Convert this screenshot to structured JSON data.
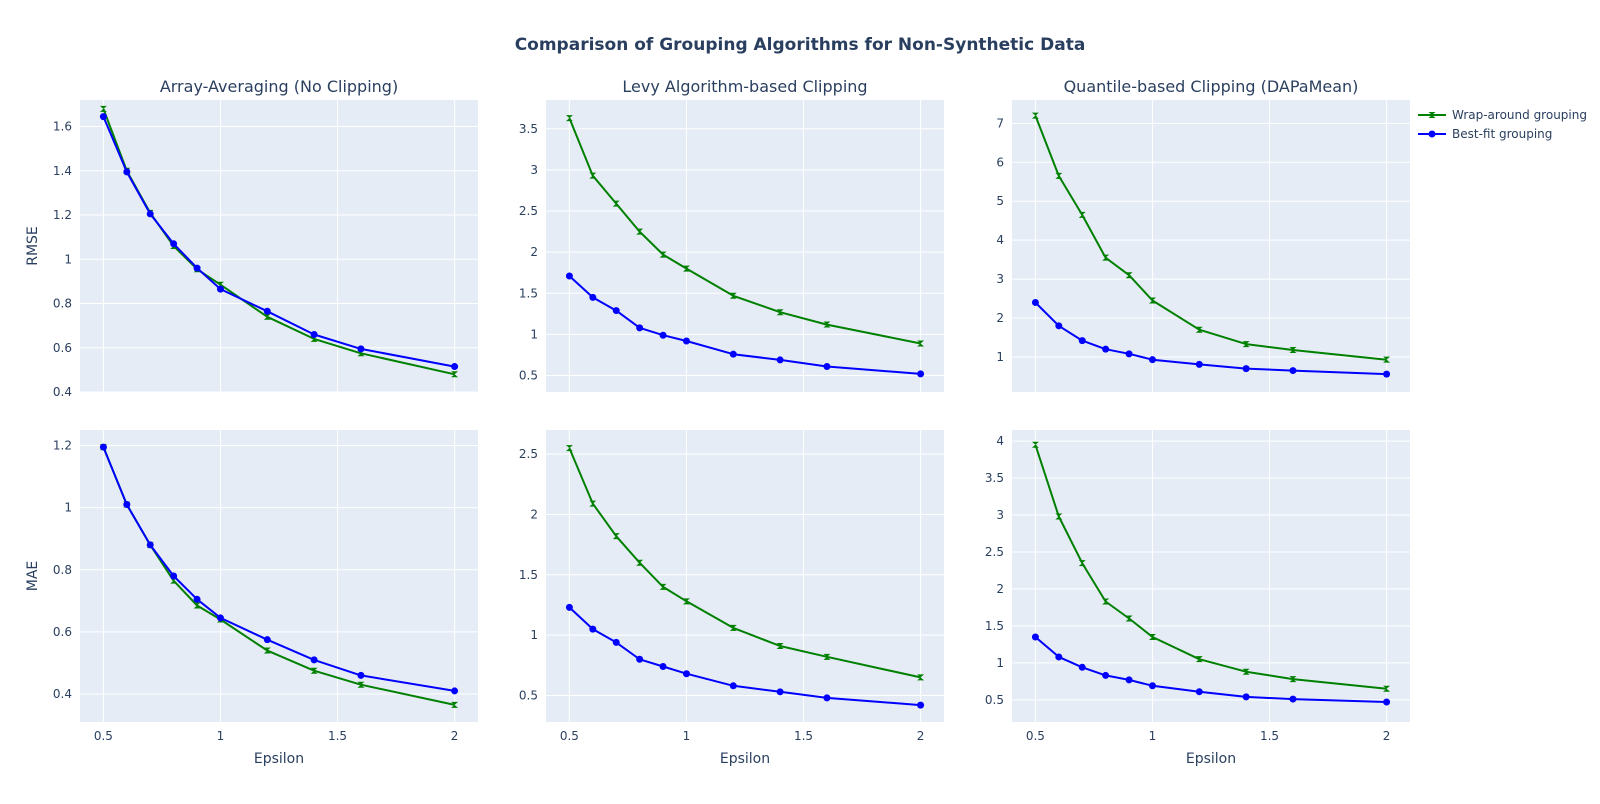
{
  "chart_data": {
    "type": "line",
    "title": "Comparison of Grouping Algorithms for Non-Synthetic Data",
    "x": [
      0.5,
      0.6,
      0.7,
      0.8,
      0.9,
      1.0,
      1.2,
      1.4,
      1.6,
      2.0
    ],
    "xlabel": "Epsilon",
    "xlim": [
      0.4,
      2.1
    ],
    "xticks": [
      0.5,
      1,
      1.5,
      2
    ],
    "xtick_labels": [
      "0.5",
      "1",
      "1.5",
      "2"
    ],
    "grid": true,
    "legend": "top-right",
    "legend_entries": [
      {
        "name": "Wrap-around grouping",
        "color": "#008000",
        "marker": "bowtie"
      },
      {
        "name": "Best-fit grouping",
        "color": "#0000ff",
        "marker": "circle"
      }
    ],
    "row_labels": [
      "RMSE",
      "MAE"
    ],
    "column_titles": [
      "Array-Averaging (No Clipping)",
      "Levy Algorithm-based Clipping",
      "Quantile-based Clipping (DAPaMean)"
    ],
    "subplots": [
      {
        "title": "Array-Averaging (No Clipping)",
        "ylabel": "RMSE",
        "ylim": [
          0.4,
          1.72
        ],
        "yticks": [
          0.4,
          0.6,
          0.8,
          1,
          1.2,
          1.4,
          1.6
        ],
        "ytick_labels": [
          "0.4",
          "0.6",
          "0.8",
          "1",
          "1.2",
          "1.4",
          "1.6"
        ],
        "series": [
          {
            "name": "Wrap-around grouping",
            "values": [
              1.68,
              1.4,
              1.21,
              1.06,
              0.955,
              0.885,
              0.74,
              0.64,
              0.575,
              0.48
            ]
          },
          {
            "name": "Best-fit grouping",
            "values": [
              1.645,
              1.395,
              1.205,
              1.07,
              0.96,
              0.865,
              0.765,
              0.66,
              0.595,
              0.515
            ]
          }
        ]
      },
      {
        "title": "Levy Algorithm-based Clipping",
        "ylabel": "",
        "ylim": [
          0.3,
          3.85
        ],
        "yticks": [
          0.5,
          1,
          1.5,
          2,
          2.5,
          3,
          3.5
        ],
        "ytick_labels": [
          "0.5",
          "1",
          "1.5",
          "2",
          "2.5",
          "3",
          "3.5"
        ],
        "series": [
          {
            "name": "Wrap-around grouping",
            "values": [
              3.63,
              2.93,
              2.59,
              2.25,
              1.97,
              1.8,
              1.47,
              1.27,
              1.12,
              0.89
            ]
          },
          {
            "name": "Best-fit grouping",
            "values": [
              1.71,
              1.45,
              1.29,
              1.08,
              0.99,
              0.92,
              0.76,
              0.69,
              0.61,
              0.52
            ]
          }
        ]
      },
      {
        "title": "Quantile-based Clipping (DAPaMean)",
        "ylabel": "",
        "ylim": [
          0.1,
          7.6
        ],
        "yticks": [
          1,
          2,
          3,
          4,
          5,
          6,
          7
        ],
        "ytick_labels": [
          "1",
          "2",
          "3",
          "4",
          "5",
          "6",
          "7"
        ],
        "series": [
          {
            "name": "Wrap-around grouping",
            "values": [
              7.2,
              5.65,
              4.65,
              3.55,
              3.1,
              2.45,
              1.7,
              1.33,
              1.18,
              0.93
            ]
          },
          {
            "name": "Best-fit grouping",
            "values": [
              2.4,
              1.8,
              1.42,
              1.2,
              1.08,
              0.93,
              0.81,
              0.7,
              0.65,
              0.56
            ]
          }
        ]
      },
      {
        "title": "",
        "ylabel": "MAE",
        "ylim": [
          0.31,
          1.25
        ],
        "yticks": [
          0.4,
          0.6,
          0.8,
          1,
          1.2
        ],
        "ytick_labels": [
          "0.4",
          "0.6",
          "0.8",
          "1",
          "1.2"
        ],
        "series": [
          {
            "name": "Wrap-around grouping",
            "values": [
              1.195,
              1.01,
              0.88,
              0.765,
              0.685,
              0.64,
              0.54,
              0.475,
              0.43,
              0.365
            ]
          },
          {
            "name": "Best-fit grouping",
            "values": [
              1.195,
              1.01,
              0.88,
              0.78,
              0.705,
              0.645,
              0.575,
              0.51,
              0.46,
              0.41
            ]
          }
        ]
      },
      {
        "title": "",
        "ylabel": "",
        "ylim": [
          0.28,
          2.7
        ],
        "yticks": [
          0.5,
          1,
          1.5,
          2,
          2.5
        ],
        "ytick_labels": [
          "0.5",
          "1",
          "1.5",
          "2",
          "2.5"
        ],
        "series": [
          {
            "name": "Wrap-around grouping",
            "values": [
              2.55,
              2.09,
              1.82,
              1.6,
              1.4,
              1.28,
              1.06,
              0.91,
              0.82,
              0.65
            ]
          },
          {
            "name": "Best-fit grouping",
            "values": [
              1.23,
              1.05,
              0.94,
              0.8,
              0.74,
              0.68,
              0.58,
              0.53,
              0.48,
              0.42
            ]
          }
        ]
      },
      {
        "title": "",
        "ylabel": "",
        "ylim": [
          0.2,
          4.15
        ],
        "yticks": [
          0.5,
          1,
          1.5,
          2,
          2.5,
          3,
          3.5,
          4
        ],
        "ytick_labels": [
          "0.5",
          "1",
          "1.5",
          "2",
          "2.5",
          "3",
          "3.5",
          "4"
        ],
        "series": [
          {
            "name": "Wrap-around grouping",
            "values": [
              3.95,
              2.98,
              2.35,
              1.83,
              1.6,
              1.35,
              1.05,
              0.88,
              0.78,
              0.65
            ]
          },
          {
            "name": "Best-fit grouping",
            "values": [
              1.35,
              1.08,
              0.94,
              0.83,
              0.77,
              0.69,
              0.61,
              0.54,
              0.51,
              0.47
            ]
          }
        ]
      }
    ]
  }
}
